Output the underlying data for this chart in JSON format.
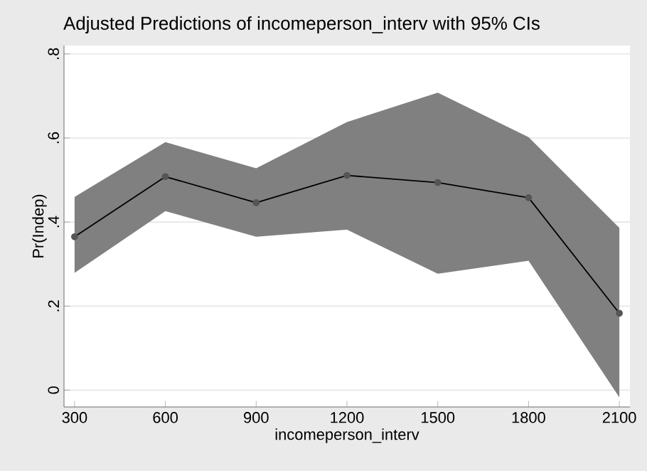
{
  "chart_data": {
    "type": "line",
    "title": "Adjusted Predictions of incomeperson_interv with 95% CIs",
    "xlabel": "incomeperson_interv",
    "ylabel": "Pr(Indep)",
    "x": [
      300,
      600,
      900,
      1200,
      1500,
      1800,
      2100
    ],
    "series": [
      {
        "color": "#000000",
        "values": [
          0.365,
          0.508,
          0.446,
          0.511,
          0.494,
          0.458,
          0.183
        ],
        "lower": [
          0.279,
          0.426,
          0.365,
          0.382,
          0.277,
          0.308,
          -0.017
        ],
        "upper": [
          0.46,
          0.59,
          0.528,
          0.638,
          0.708,
          0.602,
          0.386
        ]
      }
    ],
    "xlim": [
      265,
      2135
    ],
    "ylim": [
      -0.04,
      0.82
    ],
    "xticks": [
      300,
      600,
      900,
      1200,
      1500,
      1800,
      2100
    ],
    "yticks": [
      {
        "value": 0,
        "label": "0"
      },
      {
        "value": 0.2,
        "label": ".2"
      },
      {
        "value": 0.4,
        "label": ".4"
      },
      {
        "value": 0.6,
        "label": ".6"
      },
      {
        "value": 0.8,
        "label": ".8"
      }
    ],
    "grid": "y",
    "marker": "circle",
    "line_style": "solid"
  }
}
